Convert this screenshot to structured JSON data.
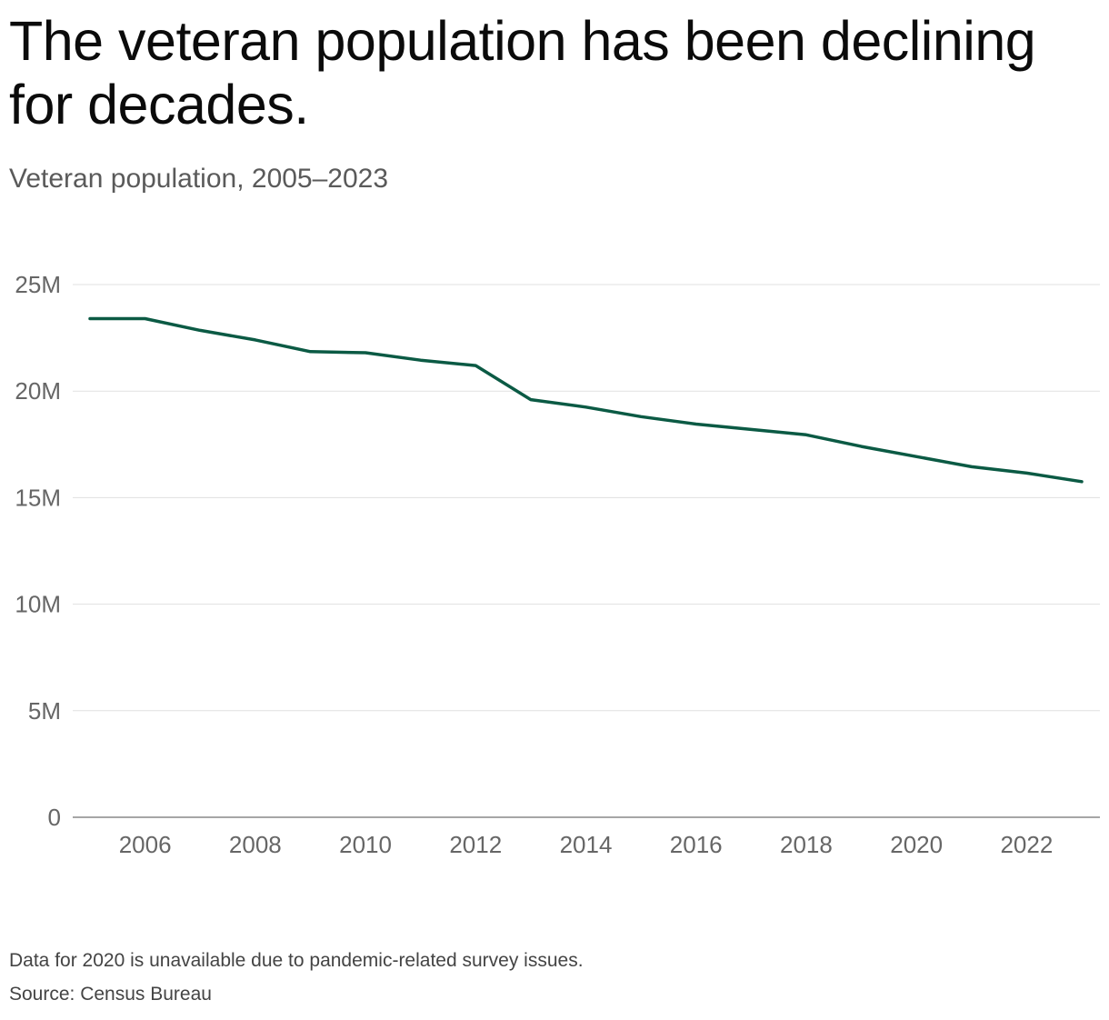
{
  "chart_data": {
    "type": "line",
    "title": "The veteran population has been declining for decades.",
    "subtitle": "Veteran population, 2005–2023",
    "xlabel": "",
    "ylabel": "",
    "x": [
      2005,
      2006,
      2007,
      2008,
      2009,
      2010,
      2011,
      2012,
      2013,
      2014,
      2015,
      2016,
      2017,
      2018,
      2019,
      2021,
      2022,
      2023
    ],
    "series": [
      {
        "name": "Veteran population",
        "values": [
          23400000,
          23400000,
          22850000,
          22400000,
          21850000,
          21800000,
          21450000,
          21200000,
          19600000,
          19250000,
          18800000,
          18450000,
          18200000,
          17950000,
          17400000,
          16450000,
          16150000,
          15750000
        ]
      }
    ],
    "xlim": [
      2005,
      2023
    ],
    "ylim": [
      0,
      25000000
    ],
    "x_ticks": [
      "2006",
      "2008",
      "2010",
      "2012",
      "2014",
      "2016",
      "2018",
      "2020",
      "2022"
    ],
    "y_ticks": [
      "0",
      "5M",
      "10M",
      "15M",
      "20M",
      "25M"
    ],
    "grid": true,
    "line_color": "#0b5a44",
    "gridline_color": "#e1e1e1",
    "baseline_color": "#888888",
    "footnote": "Data for 2020 is unavailable due to pandemic-related survey issues.",
    "source": "Source: Census Bureau"
  }
}
